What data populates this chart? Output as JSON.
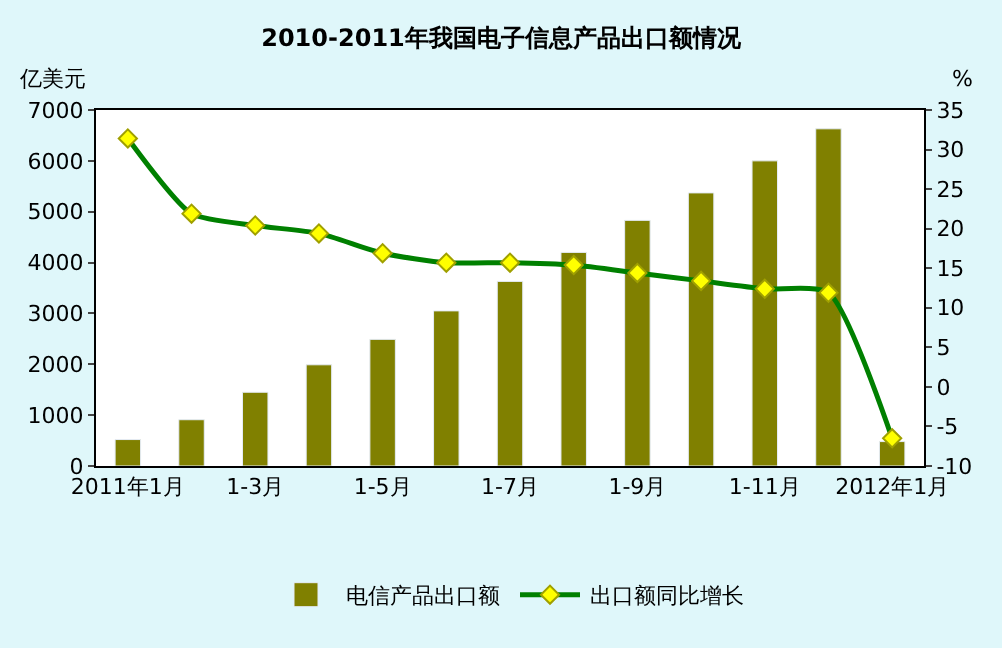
{
  "chart_data": {
    "type": "bar",
    "title": "2010-2011年我国电子信息产品出口额情况",
    "ylabel": "亿美元",
    "y2label": "%",
    "categories": [
      "2011年1月",
      null,
      "1-3月",
      null,
      "1-5月",
      null,
      "1-7月",
      null,
      "1-9月",
      null,
      "1-11月",
      null,
      "2012年1月"
    ],
    "series": [
      {
        "name": "电信产品出口额",
        "color": "#808000",
        "values": [
          520,
          910,
          1450,
          1990,
          2490,
          3050,
          3630,
          4200,
          4830,
          5370,
          6000,
          6630,
          480
        ]
      },
      {
        "name": "出口额同比增长",
        "type": "line",
        "axis": "y2",
        "color": "#008000",
        "marker": "diamond",
        "values": [
          31.4,
          21.9,
          20.4,
          19.4,
          16.9,
          15.7,
          15.7,
          15.4,
          14.4,
          13.4,
          12.4,
          11.9,
          -6.5
        ]
      }
    ],
    "ylim": [
      0,
      7000
    ],
    "yticks": [
      0,
      1000,
      2000,
      3000,
      4000,
      5000,
      6000,
      7000
    ],
    "y2lim": [
      -10,
      35
    ],
    "y2ticks": [
      -10,
      -5,
      0,
      5,
      10,
      15,
      20,
      25,
      30,
      35
    ],
    "legend": "bottom"
  }
}
